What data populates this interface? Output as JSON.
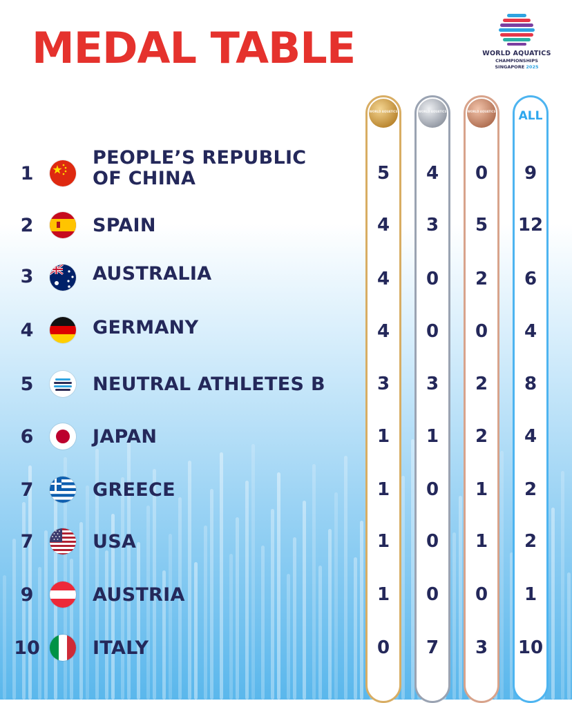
{
  "title": "MEDAL TABLE",
  "logo": {
    "line1": "WORLD AQUATICS",
    "line2": "CHAMPIONSHIPS",
    "city": "SINGAPORE",
    "year": "2025"
  },
  "columns": {
    "gold_icon": "gold-medal-icon",
    "silver_icon": "silver-medal-icon",
    "bronze_icon": "bronze-medal-icon",
    "all_label": "ALL"
  },
  "colors": {
    "title": "#e5322d",
    "text": "#24285a",
    "gold": "#d8ad63",
    "silver": "#9aa3b2",
    "bronze": "#d8a38b",
    "all": "#4db4f0"
  },
  "rows": [
    {
      "rank": "1",
      "country_line1": "PEOPLE’S REPUBLIC",
      "country_line2": "OF CHINA",
      "flag": "china-flag-icon",
      "gold": "5",
      "silver": "4",
      "bronze": "0",
      "total": "9"
    },
    {
      "rank": "2",
      "country": "SPAIN",
      "flag": "spain-flag-icon",
      "gold": "4",
      "silver": "3",
      "bronze": "5",
      "total": "12"
    },
    {
      "rank": "3",
      "country": "AUSTRALIA",
      "flag": "australia-flag-icon",
      "gold": "4",
      "silver": "0",
      "bronze": "2",
      "total": "6"
    },
    {
      "rank": "4",
      "country": "GERMANY",
      "flag": "germany-flag-icon",
      "gold": "4",
      "silver": "0",
      "bronze": "0",
      "total": "4"
    },
    {
      "rank": "5",
      "country": "NEUTRAL ATHLETES B",
      "flag": "neutral-athletes-flag-icon",
      "gold": "3",
      "silver": "3",
      "bronze": "2",
      "total": "8"
    },
    {
      "rank": "6",
      "country": "JAPAN",
      "flag": "japan-flag-icon",
      "gold": "1",
      "silver": "1",
      "bronze": "2",
      "total": "4"
    },
    {
      "rank": "7",
      "country": "GREECE",
      "flag": "greece-flag-icon",
      "gold": "1",
      "silver": "0",
      "bronze": "1",
      "total": "2"
    },
    {
      "rank": "7",
      "country": "USA",
      "flag": "usa-flag-icon",
      "gold": "1",
      "silver": "0",
      "bronze": "1",
      "total": "2"
    },
    {
      "rank": "9",
      "country": "AUSTRIA",
      "flag": "austria-flag-icon",
      "gold": "1",
      "silver": "0",
      "bronze": "0",
      "total": "1"
    },
    {
      "rank": "10",
      "country": "ITALY",
      "flag": "italy-flag-icon",
      "gold": "0",
      "silver": "7",
      "bronze": "3",
      "total": "10"
    }
  ]
}
